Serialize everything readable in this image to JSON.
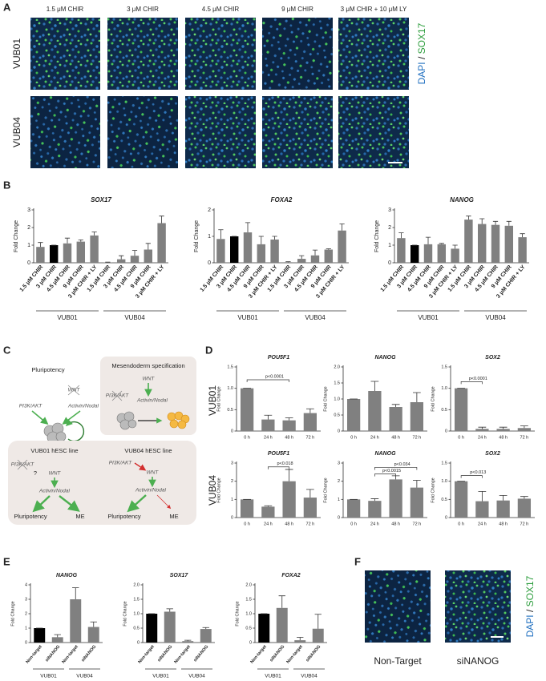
{
  "panel_labels": [
    "A",
    "B",
    "C",
    "D",
    "E",
    "F"
  ],
  "panel_a": {
    "columns": [
      "1.5 μM CHIR",
      "3 μM CHIR",
      "4.5 μM CHIR",
      "9 μM CHIR",
      "3 μM CHIR + 10 μM LY"
    ],
    "rows": [
      "VUB01",
      "VUB04"
    ],
    "stain_label": [
      "DAPI",
      "/",
      "SOX17"
    ]
  },
  "panel_c": {
    "pluripotency_box": {
      "title": "Pluripotency",
      "wnt": "WNT",
      "pi3k": "PI3K/AKT",
      "activin": "Activin/Nodal"
    },
    "mesendoderm_box": {
      "title": "Mesendoderm specification",
      "wnt": "WNT",
      "pi3k": "PI3K/AKT",
      "activin": "Activin/Nodal"
    },
    "vub01_box": {
      "title": "VUB01 hESC line",
      "pi3k": "PI3K/AKT",
      "question": "?",
      "wnt": "WNT",
      "activin": "Activin/Nodal",
      "pluripotency": "Pluripotency",
      "me": "ME"
    },
    "vub04_box": {
      "title": "VUB04 hESC line",
      "pi3k": "PI3K/AKT",
      "wnt": "WNT",
      "activin": "Activin/Nodal",
      "pluripotency": "Pluripotency",
      "me": "ME"
    }
  },
  "panel_d": {
    "rows": [
      "VUB01",
      "VUB04"
    ]
  },
  "panel_f": {
    "columns": [
      "Non-Target",
      "siNANOG"
    ],
    "stain_label": [
      "DAPI",
      "/",
      "SOX17"
    ]
  },
  "chart_data": [
    {
      "type": "bar",
      "title": "SOX17",
      "y_label": "Fold Change",
      "categories": [
        "1.5 μM CHIR",
        "3 μM CHIR",
        "4.5 μM CHIR",
        "9 μM CHIR",
        "3 μM CHIR + LY",
        "1.5 μM CHIR",
        "3 μM CHIR",
        "4.5 μM CHIR",
        "9 μM CHIR",
        "3 μM CHIR + LY"
      ],
      "values": [
        0.9,
        1.0,
        1.1,
        1.2,
        1.55,
        0.02,
        0.2,
        0.4,
        0.75,
        2.25
      ],
      "errors": [
        0.25,
        0,
        0.3,
        0.1,
        0.2,
        0.02,
        0.2,
        0.3,
        0.35,
        0.4
      ],
      "colors": [
        "#808080",
        "#000000",
        "#808080",
        "#808080",
        "#808080",
        "#808080",
        "#808080",
        "#808080",
        "#808080",
        "#808080"
      ],
      "groups": [
        "VUB01",
        "VUB04"
      ],
      "ylim": [
        0,
        3
      ],
      "yticks": [
        0,
        1,
        2,
        3
      ]
    },
    {
      "type": "bar",
      "title": "FOXA2",
      "y_label": "Fold Change",
      "categories": [
        "1.5 μM CHIR",
        "3 μM CHIR",
        "4.5 μM CHIR",
        "9 μM CHIR",
        "3 μM CHIR + LY",
        "1.5 μM CHIR",
        "3 μM CHIR",
        "4.5 μM CHIR",
        "9 μM CHIR",
        "3 μM CHIR + LY"
      ],
      "values": [
        0.9,
        1.0,
        1.15,
        0.7,
        0.88,
        0.02,
        0.15,
        0.28,
        0.5,
        1.22
      ],
      "errors": [
        0.35,
        0,
        0.37,
        0.3,
        0.12,
        0.02,
        0.12,
        0.2,
        0.03,
        0.25
      ],
      "colors": [
        "#808080",
        "#000000",
        "#808080",
        "#808080",
        "#808080",
        "#808080",
        "#808080",
        "#808080",
        "#808080",
        "#808080"
      ],
      "groups": [
        "VUB01",
        "VUB04"
      ],
      "ylim": [
        0,
        2
      ],
      "yticks": [
        0,
        1,
        2
      ]
    },
    {
      "type": "bar",
      "title": "NANOG",
      "y_label": "Fold Change",
      "categories": [
        "1.5 μM CHIR",
        "3 μM CHIR",
        "4.5 μM CHIR",
        "9 μM CHIR",
        "3 μM CHIR + LY",
        "1.5 μM CHIR",
        "3 μM CHIR",
        "4.5 μM CHIR",
        "9 μM CHIR",
        "3 μM CHIR + LY"
      ],
      "values": [
        1.4,
        1.0,
        1.05,
        1.05,
        0.8,
        2.45,
        2.2,
        2.15,
        2.1,
        1.45
      ],
      "errors": [
        0.3,
        0,
        0.4,
        0.05,
        0.2,
        0.2,
        0.3,
        0.2,
        0.25,
        0.2
      ],
      "colors": [
        "#808080",
        "#000000",
        "#808080",
        "#808080",
        "#808080",
        "#808080",
        "#808080",
        "#808080",
        "#808080",
        "#808080"
      ],
      "groups": [
        "VUB01",
        "VUB04"
      ],
      "ylim": [
        0,
        3
      ],
      "yticks": [
        0,
        1,
        2,
        3
      ]
    },
    {
      "type": "bar",
      "title": "POU5F1",
      "y_label": "Fold Change",
      "categories": [
        "0 h",
        "24 h",
        "48 h",
        "72 h"
      ],
      "values": [
        1.0,
        0.27,
        0.25,
        0.42
      ],
      "errors": [
        0,
        0.1,
        0.06,
        0.1
      ],
      "colors": [
        "#808080",
        "#808080",
        "#808080",
        "#808080"
      ],
      "ylim": [
        0,
        1.5
      ],
      "yticks": [
        0,
        0.5,
        {
          "value": 1,
          "label": "1.0"
        },
        1.5
      ],
      "annotations": [
        "p<0.0001"
      ]
    },
    {
      "type": "bar",
      "title": "NANOG",
      "y_label": "Fold Change",
      "categories": [
        "0 h",
        "24 h",
        "48 h",
        "72 h"
      ],
      "values": [
        1.0,
        1.25,
        0.75,
        0.9
      ],
      "errors": [
        0,
        0.3,
        0.08,
        0.3
      ],
      "colors": [
        "#808080",
        "#808080",
        "#808080",
        "#808080"
      ],
      "ylim": [
        0,
        2
      ],
      "yticks": [
        0,
        0.5,
        {
          "value": 1,
          "label": "1.0"
        },
        1.5,
        {
          "value": 2,
          "label": "2.0"
        }
      ]
    },
    {
      "type": "bar",
      "title": "SOX2",
      "y_label": "Fold Change",
      "categories": [
        "0 h",
        "24 h",
        "48 h",
        "72 h"
      ],
      "values": [
        1.0,
        0.05,
        0.05,
        0.07
      ],
      "errors": [
        0,
        0.04,
        0.04,
        0.05
      ],
      "colors": [
        "#808080",
        "#808080",
        "#808080",
        "#808080"
      ],
      "ylim": [
        0,
        1.5
      ],
      "yticks": [
        0,
        0.5,
        {
          "value": 1,
          "label": "1.0"
        },
        1.5
      ],
      "annotations": [
        "p<0.0001"
      ]
    },
    {
      "type": "bar",
      "title": "POU5F1",
      "y_label": "Fold Change",
      "categories": [
        "0 h",
        "24 h",
        "48 h",
        "72 h"
      ],
      "values": [
        1.0,
        0.6,
        2.0,
        1.1
      ],
      "errors": [
        0,
        0.05,
        0.65,
        0.45
      ],
      "colors": [
        "#808080",
        "#808080",
        "#808080",
        "#808080"
      ],
      "ylim": [
        0,
        3
      ],
      "yticks": [
        0,
        1,
        2,
        3
      ],
      "annotations": [
        "p<0.018"
      ]
    },
    {
      "type": "bar",
      "title": "NANOG",
      "y_label": "Fold Change",
      "categories": [
        "0 h",
        "24 h",
        "48 h",
        "72 h"
      ],
      "values": [
        1.0,
        0.92,
        2.1,
        1.65
      ],
      "errors": [
        0,
        0.12,
        0.2,
        0.4
      ],
      "colors": [
        "#808080",
        "#808080",
        "#808080",
        "#808080"
      ],
      "ylim": [
        0,
        3
      ],
      "yticks": [
        0,
        1,
        2,
        3
      ],
      "annotations": [
        "p<0.034",
        "p<0.0015"
      ]
    },
    {
      "type": "bar",
      "title": "SOX2",
      "y_label": "Fold Change",
      "categories": [
        "0 h",
        "24 h",
        "48 h",
        "72 h"
      ],
      "values": [
        1.0,
        0.45,
        0.47,
        0.52
      ],
      "errors": [
        0,
        0.27,
        0.14,
        0.06
      ],
      "colors": [
        "#808080",
        "#808080",
        "#808080",
        "#808080"
      ],
      "ylim": [
        0,
        1.5
      ],
      "yticks": [
        0,
        0.5,
        {
          "value": 1,
          "label": "1.0"
        },
        1.5
      ],
      "annotations": [
        "p<0.013"
      ]
    },
    {
      "type": "bar",
      "title": "NANOG",
      "y_label": "Fold Change",
      "categories": [
        "Non-target",
        "siNANOG",
        "Non-target",
        "siNANOG"
      ],
      "values": [
        1.0,
        0.37,
        3.0,
        1.08
      ],
      "errors": [
        0,
        0.18,
        0.8,
        0.35
      ],
      "colors": [
        "#000000",
        "#808080",
        "#808080",
        "#808080"
      ],
      "groups": [
        "VUB01",
        "VUB04"
      ],
      "ylim": [
        0,
        4
      ],
      "yticks": [
        0,
        1,
        2,
        3,
        4
      ]
    },
    {
      "type": "bar",
      "title": "SOX17",
      "y_label": "Fold Change",
      "categories": [
        "Non-target",
        "siNANOG",
        "Non-target",
        "siNANOG"
      ],
      "values": [
        1.0,
        1.07,
        0.05,
        0.47
      ],
      "errors": [
        0,
        0.1,
        0.03,
        0.05
      ],
      "colors": [
        "#000000",
        "#808080",
        "#808080",
        "#808080"
      ],
      "groups": [
        "VUB01",
        "VUB04"
      ],
      "ylim": [
        0,
        2
      ],
      "yticks": [
        0,
        0.5,
        {
          "value": 1,
          "label": "1.0"
        },
        1.5,
        {
          "value": 2,
          "label": "2.0"
        }
      ]
    },
    {
      "type": "bar",
      "title": "FOXA2",
      "y_label": "Fold Change",
      "categories": [
        "Non-target",
        "siNANOG",
        "Non-target",
        "siNANOG"
      ],
      "values": [
        1.0,
        1.2,
        0.08,
        0.48
      ],
      "errors": [
        0,
        0.42,
        0.1,
        0.5
      ],
      "colors": [
        "#000000",
        "#808080",
        "#808080",
        "#808080"
      ],
      "groups": [
        "VUB01",
        "VUB04"
      ],
      "ylim": [
        0,
        2
      ],
      "yticks": [
        0,
        0.5,
        {
          "value": 1,
          "label": "1.0"
        },
        1.5,
        {
          "value": 2,
          "label": "2.0"
        }
      ]
    }
  ]
}
